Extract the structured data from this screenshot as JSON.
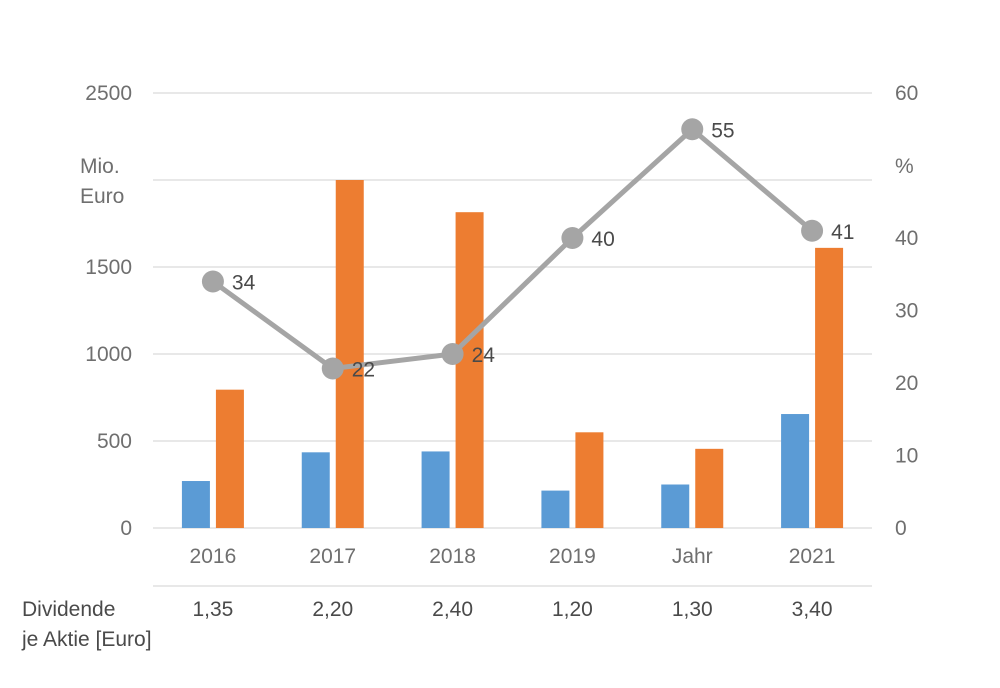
{
  "chart_data": {
    "type": "bar",
    "categories": [
      "2016",
      "2017",
      "2018",
      "2019",
      "Jahr",
      "2021"
    ],
    "series": [
      {
        "type": "bar",
        "axis": "left",
        "color": "#5b9bd5",
        "values": [
          270,
          435,
          440,
          215,
          250,
          655
        ]
      },
      {
        "type": "bar",
        "axis": "left",
        "color": "#ed7d31",
        "values": [
          795,
          2000,
          1815,
          550,
          455,
          1610
        ]
      },
      {
        "type": "line",
        "axis": "right",
        "color": "#a5a5a5",
        "values": [
          34,
          22,
          24,
          40,
          55,
          41
        ],
        "data_labels": [
          "34",
          "22",
          "24",
          "40",
          "55",
          "41"
        ]
      }
    ],
    "y_left": {
      "unit_label": [
        "Mio.",
        "Euro"
      ],
      "ylim": [
        0,
        2500
      ],
      "ticks": [
        0,
        500,
        1000,
        1500,
        2500
      ],
      "tick_labels": [
        "0",
        "500",
        "1000",
        "1500",
        "2500"
      ],
      "gridlines": [
        0,
        500,
        1000,
        1500,
        2000,
        2500
      ]
    },
    "y_right": {
      "unit_label": "%",
      "ylim": [
        0,
        60
      ],
      "tick_labels": [
        "0",
        "10",
        "20",
        "30",
        "40",
        "60"
      ]
    },
    "grid": true,
    "legend": "none",
    "dividend_row": {
      "label": [
        "Dividende",
        "je Aktie [Euro]"
      ],
      "values": [
        "1,35",
        "2,20",
        "2,40",
        "1,20",
        "1,30",
        "3,40"
      ]
    }
  }
}
